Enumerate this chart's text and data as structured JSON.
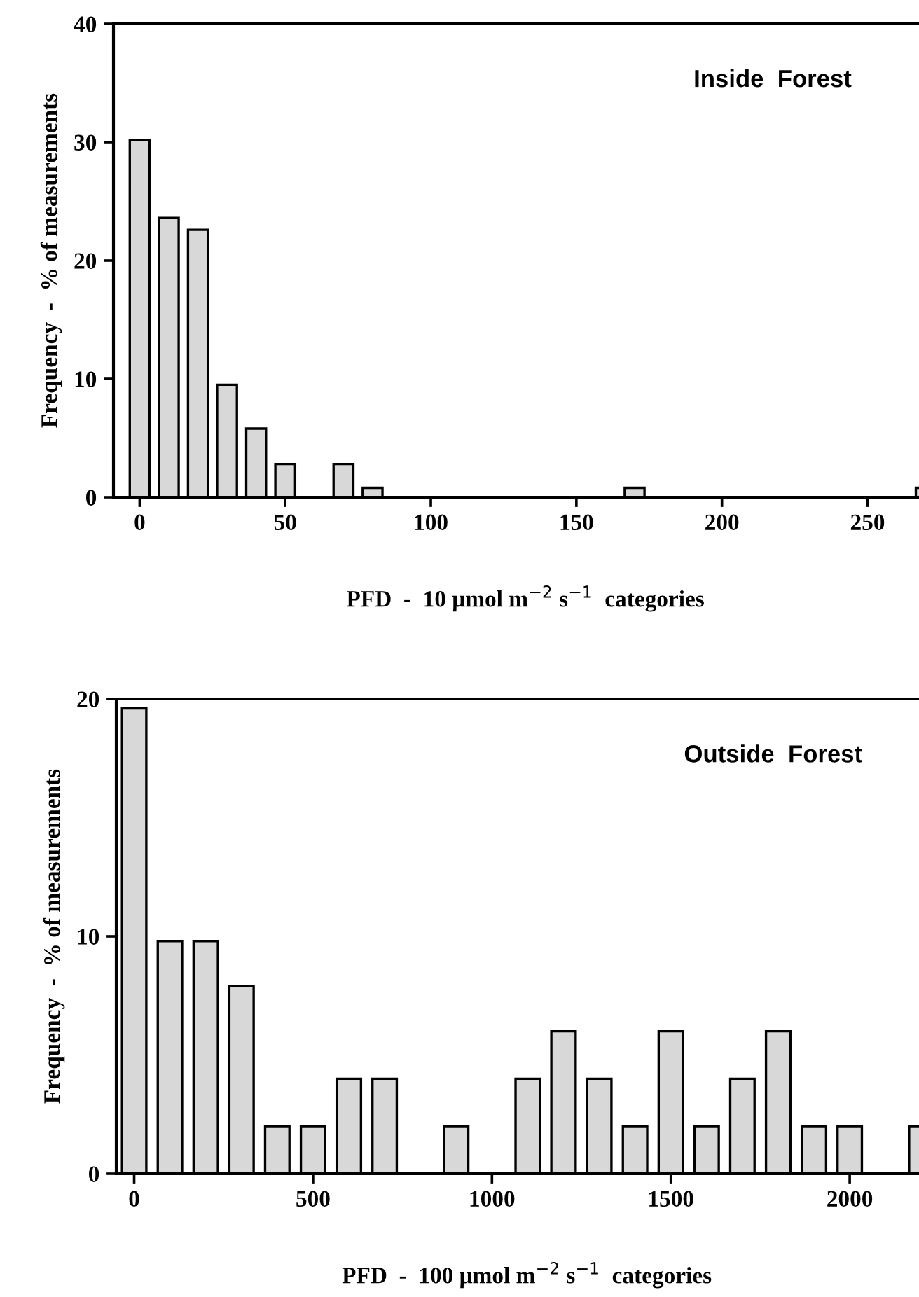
{
  "chart_data": [
    {
      "type": "bar",
      "title": "Inside  Forest",
      "xlabel": "PFD  -  10 μmol m$^{−2}$ s$^{−1}$  categories",
      "ylabel": "Frequency  -  % of measurements",
      "x": [
        0,
        10,
        20,
        30,
        40,
        50,
        70,
        80,
        170,
        270
      ],
      "values": [
        30.2,
        23.6,
        22.6,
        9.5,
        5.8,
        2.8,
        2.8,
        0.8,
        0.8,
        0.8
      ],
      "color": "#d8d8d8",
      "xlim": [
        -9,
        274
      ],
      "xticks": [
        0,
        50,
        100,
        150,
        200,
        250
      ],
      "ylim": [
        0,
        40
      ],
      "yticks": [
        0,
        10,
        20,
        30,
        40
      ],
      "grid": false,
      "legend": false
    },
    {
      "type": "bar",
      "title": "Outside  Forest",
      "xlabel": "PFD  -  100 μmol m$^{−2}$ s$^{−1}$  categories",
      "ylabel": "Frequency  -  % of measurements",
      "x": [
        0,
        100,
        200,
        300,
        400,
        500,
        600,
        700,
        900,
        1100,
        1200,
        1300,
        1400,
        1500,
        1600,
        1700,
        1800,
        1900,
        2000,
        2200
      ],
      "values": [
        19.6,
        9.8,
        9.8,
        7.9,
        2,
        2,
        4,
        4,
        2,
        4,
        6,
        4,
        2,
        6,
        2,
        4,
        6,
        2,
        2,
        2
      ],
      "color": "#d8d8d8",
      "xlim": [
        -50,
        2245
      ],
      "xticks": [
        0,
        500,
        1000,
        1500,
        2000
      ],
      "ylim": [
        0,
        20
      ],
      "yticks": [
        0,
        10,
        20
      ],
      "grid": false,
      "legend": false
    }
  ]
}
